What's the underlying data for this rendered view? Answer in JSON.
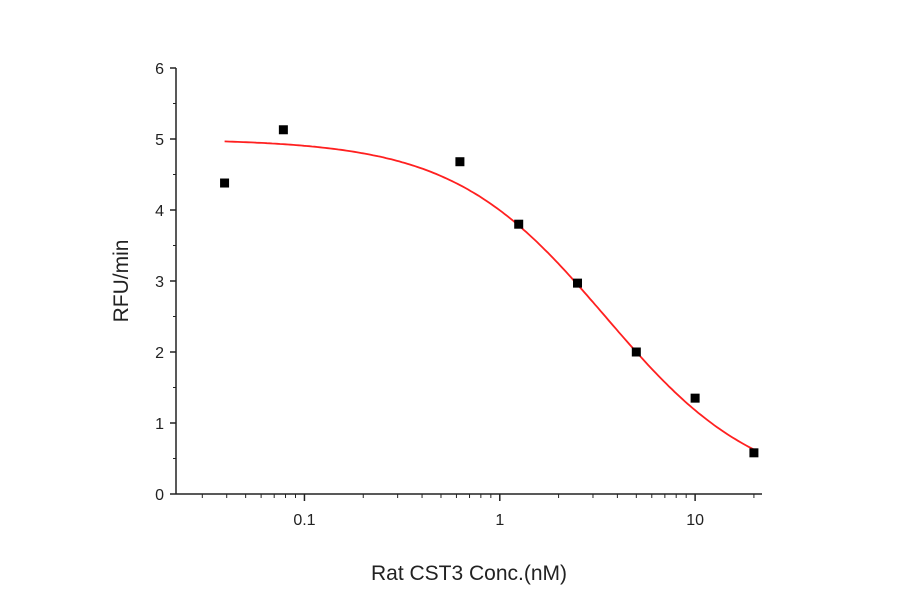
{
  "chart_data": {
    "type": "scatter",
    "title": "",
    "xlabel": "Rat CST3 Conc.(nM)",
    "ylabel": "RFU/min",
    "xscale": "log",
    "xlim": [
      0.022,
      22
    ],
    "ylim": [
      0,
      6
    ],
    "x_tick_labels": [
      "0.1",
      "1",
      "10"
    ],
    "x_ticks": [
      0.1,
      1,
      10
    ],
    "y_tick_labels": [
      "0",
      "1",
      "2",
      "3",
      "4",
      "5",
      "6"
    ],
    "y_ticks": [
      0,
      1,
      2,
      3,
      4,
      5,
      6
    ],
    "grid": false,
    "legend": "none",
    "series": [
      {
        "type": "scatter",
        "marker": "square",
        "color": "#000000",
        "x": [
          0.039,
          0.078,
          0.625,
          1.25,
          2.5,
          5,
          10,
          20
        ],
        "y": [
          4.38,
          5.13,
          4.68,
          3.8,
          2.97,
          2.0,
          1.35,
          0.58
        ]
      },
      {
        "type": "line",
        "fit": "four-parameter logistic",
        "color": "#ff2020",
        "params": {
          "top": 5.0,
          "bottom": 0,
          "ec50": 3.47,
          "hill": 1.11
        },
        "x_range": [
          0.039,
          20
        ]
      }
    ]
  }
}
